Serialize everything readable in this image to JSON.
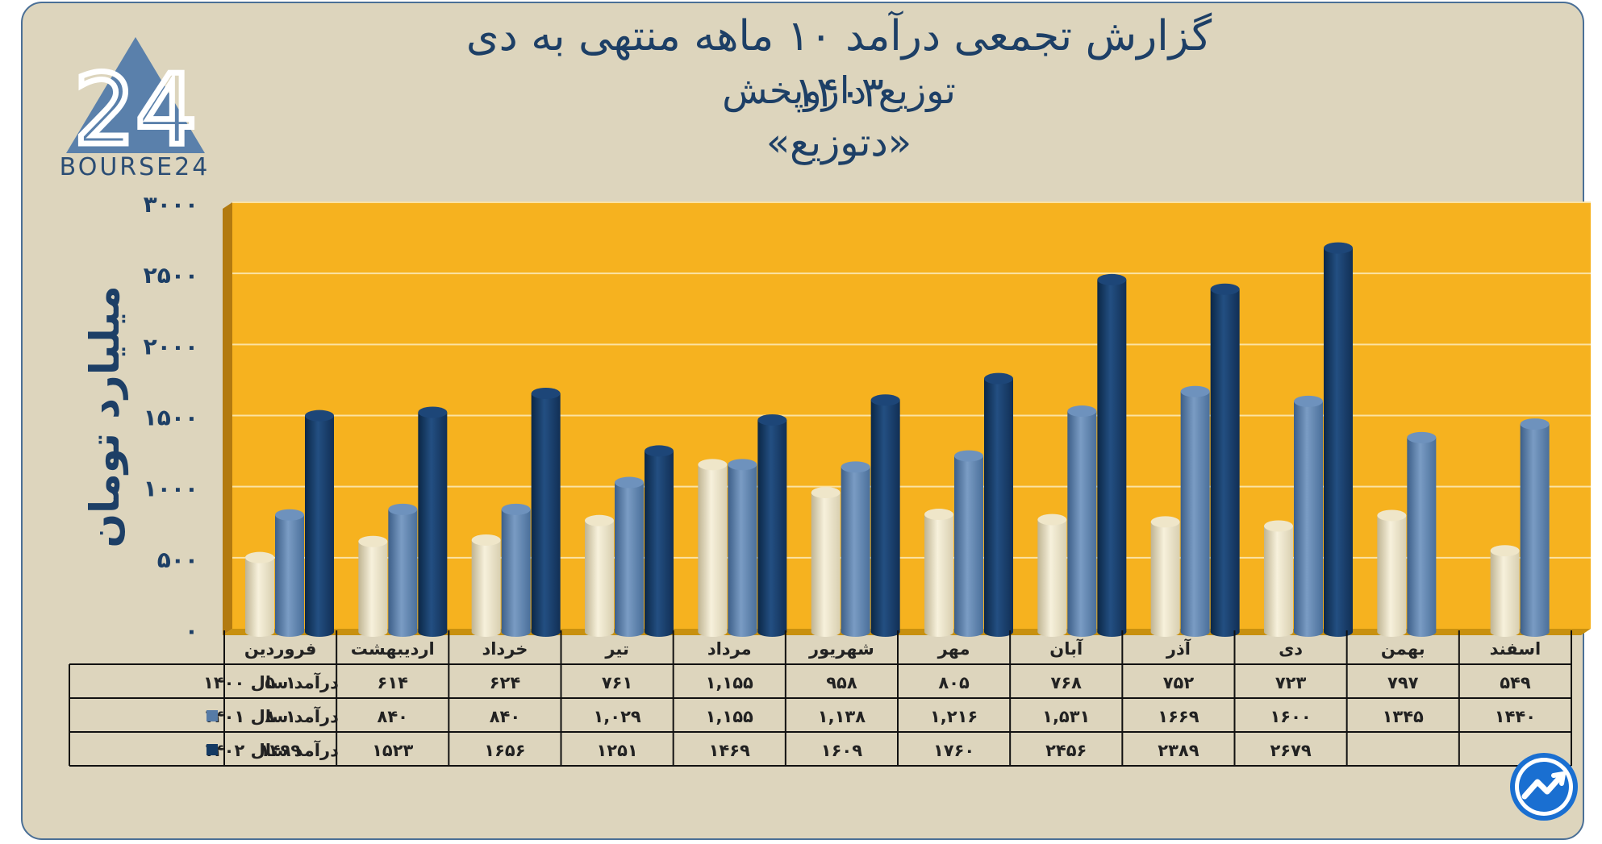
{
  "header": {
    "title_line1": "گزارش تجمعی درآمد ۱۰ ماهه منتهی به دی ۱۴۰۳",
    "title_line2": "توزیع داروپخش",
    "title_line3": "«دتوزیع»"
  },
  "logo": {
    "text": "BOURSE24",
    "mark": "24"
  },
  "colors": {
    "plot_bg": "#f6b21f",
    "series_1400": "#e8dfc2",
    "series_1401": "#567ba6",
    "series_1402": "#143a63",
    "text_dark": "#1d3f66"
  },
  "chart_data": {
    "type": "bar",
    "title": "گزارش تجمعی درآمد ۱۰ ماهه منتهی به دی ۱۴۰۳",
    "ylabel": "میلیارد تومان",
    "ylim": [
      0,
      3000
    ],
    "yticks": [
      0,
      500,
      1000,
      1500,
      2000,
      2500,
      3000
    ],
    "ytick_labels": [
      "۰",
      "۵۰۰",
      "۱۰۰۰",
      "۱۵۰۰",
      "۲۰۰۰",
      "۲۵۰۰",
      "۳۰۰۰"
    ],
    "categories": [
      "فروردین",
      "اردیبهشت",
      "خرداد",
      "تیر",
      "مرداد",
      "شهریور",
      "مهر",
      "آبان",
      "آذر",
      "دی",
      "بهمن",
      "اسفند"
    ],
    "series": [
      {
        "name": "درآمد سال ۱۴۰۰",
        "key": "s1400",
        "marker": false,
        "values": [
          501,
          614,
          624,
          761,
          1155,
          958,
          805,
          768,
          752,
          723,
          797,
          549
        ],
        "labels": [
          "۵۰۱",
          "۶۱۴",
          "۶۲۴",
          "۷۶۱",
          "۱,۱۵۵",
          "۹۵۸",
          "۸۰۵",
          "۷۶۸",
          "۷۵۲",
          "۷۲۳",
          "۷۹۷",
          "۵۴۹"
        ]
      },
      {
        "name": "درآمد سال ۱۴۰۱",
        "key": "s1401",
        "marker": true,
        "values": [
          801,
          840,
          840,
          1029,
          1155,
          1138,
          1216,
          1531,
          1669,
          1600,
          1345,
          1440
        ],
        "labels": [
          "۸۰۱",
          "۸۴۰",
          "۸۴۰",
          "۱,۰۲۹",
          "۱,۱۵۵",
          "۱,۱۳۸",
          "۱,۲۱۶",
          "۱,۵۳۱",
          "۱۶۶۹",
          "۱۶۰۰",
          "۱۳۴۵",
          "۱۴۴۰"
        ]
      },
      {
        "name": "درآمد سال ۱۴۰۲",
        "key": "s1402",
        "marker": true,
        "values": [
          1499,
          1523,
          1656,
          1251,
          1469,
          1609,
          1760,
          2456,
          2389,
          2679,
          null,
          null
        ],
        "labels": [
          "۱۴۹۹",
          "۱۵۲۳",
          "۱۶۵۶",
          "۱۲۵۱",
          "۱۴۶۹",
          "۱۶۰۹",
          "۱۷۶۰",
          "۲۴۵۶",
          "۲۳۸۹",
          "۲۶۷۹",
          "",
          ""
        ]
      }
    ]
  }
}
